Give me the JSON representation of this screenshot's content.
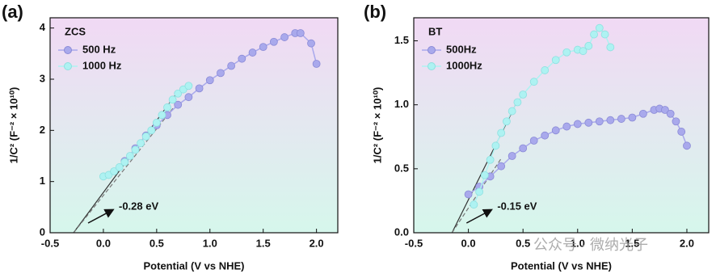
{
  "chart_data": [
    {
      "type": "scatter-line",
      "panel_label": "(a)",
      "legend_title": "ZCS",
      "x_label": "Potential (V vs NHE)",
      "y_label": "1/C² (F⁻² × 10¹⁰)",
      "xlim": [
        -0.5,
        2.2
      ],
      "ylim": [
        0,
        4.2
      ],
      "xticks": [
        -0.5,
        {
          "value": 0,
          "label": "0.0"
        },
        0.5,
        {
          "value": 1,
          "label": "1.0"
        },
        1.5,
        {
          "value": 2,
          "label": "2.0"
        }
      ],
      "yticks": [
        0,
        1,
        2,
        3,
        4
      ],
      "series": [
        {
          "name": "500 Hz",
          "color": "#a9a9ec",
          "x": [
            0.2,
            0.3,
            0.4,
            0.5,
            0.6,
            0.7,
            0.8,
            0.9,
            1.0,
            1.1,
            1.2,
            1.3,
            1.4,
            1.5,
            1.6,
            1.7,
            1.8,
            1.85,
            1.95,
            2.0
          ],
          "values": [
            1.4,
            1.65,
            1.9,
            2.1,
            2.3,
            2.5,
            2.65,
            2.82,
            2.98,
            3.12,
            3.26,
            3.4,
            3.52,
            3.63,
            3.73,
            3.82,
            3.9,
            3.9,
            3.7,
            3.3
          ]
        },
        {
          "name": "1000 Hz",
          "color": "#aef2f2",
          "x": [
            0.0,
            0.05,
            0.1,
            0.15,
            0.2,
            0.25,
            0.3,
            0.35,
            0.4,
            0.45,
            0.5,
            0.55,
            0.6,
            0.65,
            0.7,
            0.75,
            0.8
          ],
          "values": [
            1.1,
            1.13,
            1.2,
            1.28,
            1.38,
            1.5,
            1.62,
            1.75,
            1.88,
            2.0,
            2.15,
            2.3,
            2.45,
            2.6,
            2.72,
            2.8,
            2.87
          ]
        }
      ],
      "fit_lines": [
        {
          "x": [
            -0.28,
            0.68
          ],
          "y": [
            0,
            2.7
          ],
          "color": "#333333",
          "dashed": false
        },
        {
          "x": [
            -0.28,
            0.66
          ],
          "y": [
            0,
            2.45
          ],
          "color": "#777777",
          "dashed": true
        }
      ],
      "annotation": "-0.28 eV"
    },
    {
      "type": "scatter-line",
      "panel_label": "(b)",
      "legend_title": "BT",
      "x_label": "Potential (V vs NHE)",
      "y_label": "1/C² (F⁻² × 10¹⁰)",
      "xlim": [
        -0.5,
        2.2
      ],
      "ylim": [
        0,
        1.68
      ],
      "xticks": [
        -0.5,
        {
          "value": 0,
          "label": "0.0"
        },
        0.5,
        {
          "value": 1,
          "label": "1.0"
        },
        1.5,
        {
          "value": 2,
          "label": "2.0"
        }
      ],
      "yticks": [
        {
          "value": 0,
          "label": "0.0"
        },
        0.5,
        {
          "value": 1,
          "label": "1.0"
        },
        1.5
      ],
      "series": [
        {
          "name": "500Hz",
          "color": "#a9a9ec",
          "x": [
            0.0,
            0.1,
            0.2,
            0.3,
            0.4,
            0.5,
            0.6,
            0.7,
            0.8,
            0.9,
            1.0,
            1.1,
            1.2,
            1.3,
            1.4,
            1.5,
            1.6,
            1.7,
            1.75,
            1.8,
            1.85,
            1.9,
            1.95,
            2.0
          ],
          "values": [
            0.3,
            0.36,
            0.44,
            0.52,
            0.6,
            0.66,
            0.72,
            0.76,
            0.8,
            0.83,
            0.85,
            0.86,
            0.87,
            0.88,
            0.89,
            0.9,
            0.93,
            0.96,
            0.97,
            0.96,
            0.93,
            0.87,
            0.79,
            0.68
          ]
        },
        {
          "name": "1000Hz",
          "color": "#aef2f2",
          "x": [
            0.05,
            0.1,
            0.15,
            0.2,
            0.25,
            0.3,
            0.35,
            0.4,
            0.45,
            0.5,
            0.6,
            0.7,
            0.8,
            0.9,
            1.0,
            1.05,
            1.1,
            1.15,
            1.2,
            1.25,
            1.3
          ],
          "values": [
            0.22,
            0.32,
            0.45,
            0.57,
            0.68,
            0.78,
            0.87,
            0.95,
            1.02,
            1.08,
            1.18,
            1.27,
            1.35,
            1.41,
            1.43,
            1.42,
            1.46,
            1.55,
            1.6,
            1.55,
            1.45
          ]
        }
      ],
      "fit_lines": [
        {
          "x": [
            -0.15,
            0.45
          ],
          "y": [
            0,
            1.03
          ],
          "color": "#333333",
          "dashed": false
        },
        {
          "x": [
            -0.15,
            0.3
          ],
          "y": [
            0,
            0.58
          ],
          "color": "#777777",
          "dashed": true
        }
      ],
      "annotation": "-0.15 eV"
    }
  ],
  "watermark": "公众号 · 微纳光子"
}
